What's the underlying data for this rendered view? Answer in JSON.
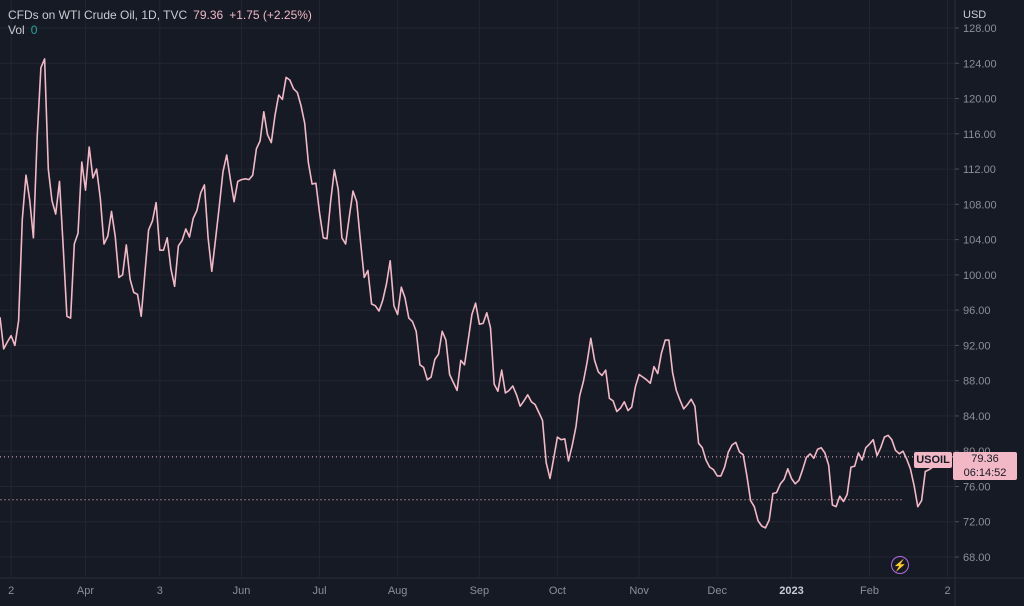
{
  "legend": {
    "symbol": "CFDs on WTI Crude Oil, 1D, TVC",
    "last": "79.36",
    "change": "+1.75 (+2.25%)",
    "vol_label": "Vol",
    "vol_value": "0"
  },
  "axis": {
    "currency": "USD",
    "symbol_tag": "USOIL",
    "price_tag": "79.36",
    "countdown": "06:14:52"
  },
  "colors": {
    "line": "#f2b8c6",
    "background": "#161a25",
    "grid": "#232632"
  },
  "chart_data": {
    "type": "line",
    "ylim": [
      66,
      130
    ],
    "yticks": [
      68,
      72,
      76,
      80,
      84,
      88,
      92,
      96,
      100,
      104,
      108,
      112,
      116,
      120,
      124,
      128
    ],
    "xticks": [
      {
        "label": "2",
        "index": 3
      },
      {
        "label": "Apr",
        "index": 23
      },
      {
        "label": "3",
        "index": 43
      },
      {
        "label": "Jun",
        "index": 65
      },
      {
        "label": "Jul",
        "index": 86
      },
      {
        "label": "Aug",
        "index": 107
      },
      {
        "label": "Sep",
        "index": 129
      },
      {
        "label": "Oct",
        "index": 150
      },
      {
        "label": "Nov",
        "index": 172
      },
      {
        "label": "Dec",
        "index": 193
      },
      {
        "label": "2023",
        "index": 213,
        "bold": true
      },
      {
        "label": "Feb",
        "index": 234
      },
      {
        "label": "2",
        "index": 255
      }
    ],
    "total_slots": 257,
    "last_price": 79.36,
    "dashed_level": 74.5,
    "series": [
      {
        "values": [
          95.2,
          91.6,
          92.4,
          93.1,
          92.0,
          94.8,
          106.3,
          111.3,
          108.5,
          104.2,
          115.7,
          123.5,
          124.5,
          112.0,
          108.4,
          106.9,
          110.6,
          103.2,
          95.3,
          95.1,
          103.5,
          104.7,
          112.8,
          109.6,
          114.5,
          111.0,
          112.0,
          108.7,
          103.5,
          104.4,
          107.2,
          104.4,
          99.7,
          100.0,
          103.4,
          99.5,
          98.0,
          97.8,
          95.3,
          100.2,
          105.1,
          106.1,
          108.2,
          102.8,
          102.8,
          104.2,
          100.7,
          98.7,
          103.3,
          103.9,
          105.2,
          104.3,
          106.4,
          107.3,
          109.3,
          110.2,
          104.2,
          100.4,
          104.0,
          107.7,
          111.7,
          113.6,
          110.8,
          108.3,
          110.6,
          110.8,
          110.9,
          110.8,
          111.3,
          114.3,
          115.2,
          118.5,
          115.9,
          115.0,
          118.1,
          120.4,
          119.9,
          122.4,
          122.1,
          121.1,
          120.7,
          119.2,
          117.2,
          112.7,
          110.3,
          110.4,
          107.0,
          104.2,
          104.1,
          108.4,
          111.9,
          109.7,
          104.2,
          103.5,
          106.6,
          109.5,
          108.3,
          103.9,
          99.7,
          100.5,
          96.7,
          96.5,
          95.9,
          97.1,
          99.0,
          101.6,
          96.5,
          95.5,
          98.6,
          97.4,
          95.1,
          94.7,
          93.6,
          89.8,
          89.5,
          88.1,
          88.4,
          90.4,
          91.0,
          93.6,
          92.6,
          88.7,
          87.8,
          86.9,
          90.3,
          89.8,
          92.6,
          95.5,
          96.8,
          94.4,
          94.5,
          95.7,
          94.0,
          87.6,
          86.8,
          89.2,
          86.6,
          86.9,
          87.4,
          86.4,
          85.1,
          85.7,
          86.4,
          85.6,
          85.3,
          84.4,
          83.5,
          78.7,
          76.9,
          79.2,
          81.6,
          81.3,
          81.4,
          78.9,
          80.7,
          82.8,
          86.3,
          87.9,
          90.1,
          92.8,
          90.3,
          89.0,
          88.6,
          89.2,
          86.0,
          85.7,
          84.5,
          84.9,
          85.6,
          84.6,
          85.0,
          87.3,
          88.7,
          88.4,
          88.1,
          87.7,
          89.6,
          88.8,
          91.1,
          92.6,
          92.6,
          88.9,
          86.9,
          85.8,
          84.8,
          85.3,
          85.9,
          85.1,
          80.9,
          80.4,
          79.0,
          78.2,
          77.9,
          77.2,
          77.2,
          78.2,
          79.9,
          80.7,
          81.0,
          79.9,
          79.6,
          77.2,
          74.4,
          73.7,
          72.1,
          71.5,
          71.3,
          72.2,
          75.2,
          75.3,
          76.3,
          76.8,
          78.0,
          76.9,
          76.3,
          76.7,
          77.9,
          79.3,
          79.7,
          79.2,
          80.2,
          80.4,
          79.8,
          78.4,
          73.9,
          73.7,
          74.9,
          74.3,
          75.1,
          78.2,
          78.3,
          79.8,
          79.0,
          80.4,
          80.8,
          81.3,
          79.5,
          80.4,
          81.6,
          81.8,
          81.3,
          80.1,
          79.7,
          80.0,
          79.1,
          78.0,
          76.1,
          73.7,
          74.4,
          77.7,
          77.9,
          78.2,
          79.4
        ]
      }
    ]
  }
}
